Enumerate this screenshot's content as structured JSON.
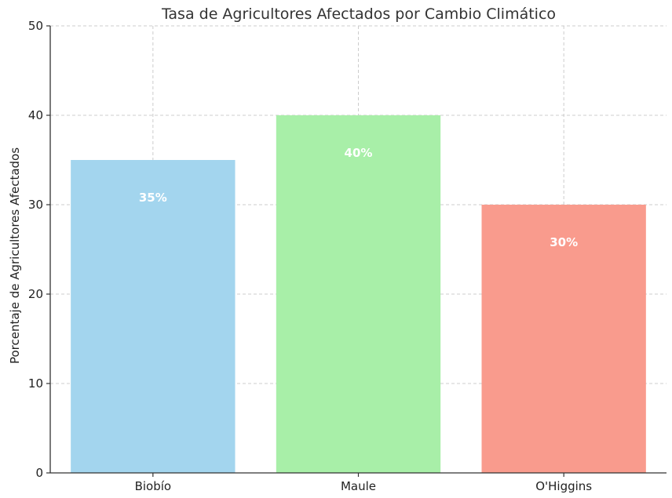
{
  "chart_data": {
    "type": "bar",
    "title": "Tasa de Agricultores Afectados por Cambio Climático",
    "xlabel": "",
    "ylabel": "Porcentaje de Agricultores Afectados",
    "categories": [
      "Biobío",
      "Maule",
      "O'Higgins"
    ],
    "values": [
      35,
      40,
      30
    ],
    "data_labels": [
      "35%",
      "40%",
      "30%"
    ],
    "colors": [
      "#a3d5ee",
      "#a8efa8",
      "#f99b8d"
    ],
    "ylim": [
      0,
      50
    ],
    "yticks": [
      0,
      10,
      20,
      30,
      40,
      50
    ],
    "grid": true,
    "legend": "none"
  }
}
